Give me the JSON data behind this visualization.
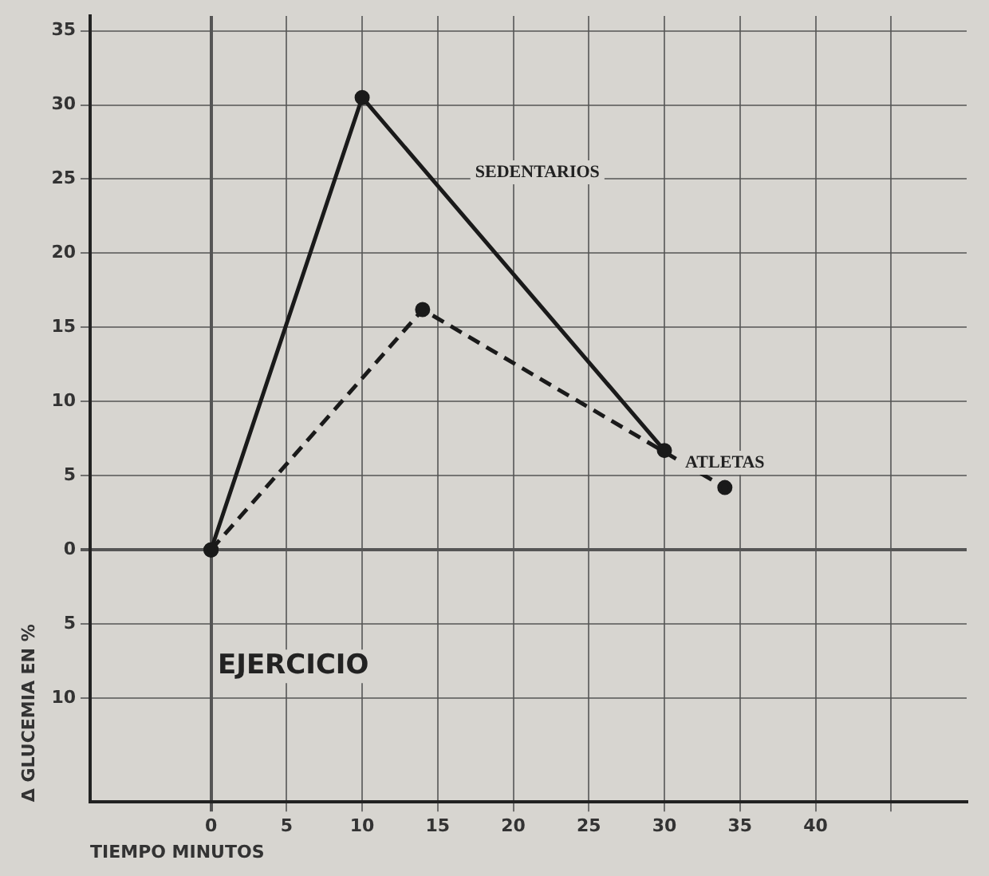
{
  "chart_data": {
    "type": "line",
    "xlabel": "TIEMPO MINUTOS",
    "ylabel": "Δ GLUCEMIA EN %",
    "series": [
      {
        "name": "SEDENTARIOS",
        "color": "#1a1a1a",
        "x": [
          0,
          10,
          30
        ],
        "values": [
          0,
          30.5,
          6.7
        ],
        "line_style": "solid"
      },
      {
        "name": "ATLETAS",
        "color": "#1a1a1a",
        "x": [
          0,
          14,
          34
        ],
        "values": [
          0,
          16.2,
          4.2
        ],
        "line_style": "dashed"
      }
    ],
    "xlim": [
      -8,
      50
    ],
    "xticks": [
      0,
      5,
      10,
      15,
      20,
      25,
      30,
      35,
      40,
      {
        "value": 45,
        "label": null
      }
    ],
    "ylim": [
      -17,
      36
    ],
    "yticks": [
      {
        "value": -10,
        "label": "10"
      },
      {
        "value": -5,
        "label": "5"
      },
      0,
      5,
      10,
      15,
      20,
      25,
      30,
      35
    ],
    "annotations": [
      "EJERCICIO"
    ],
    "grid": true,
    "marker": "circle",
    "legend": false
  }
}
